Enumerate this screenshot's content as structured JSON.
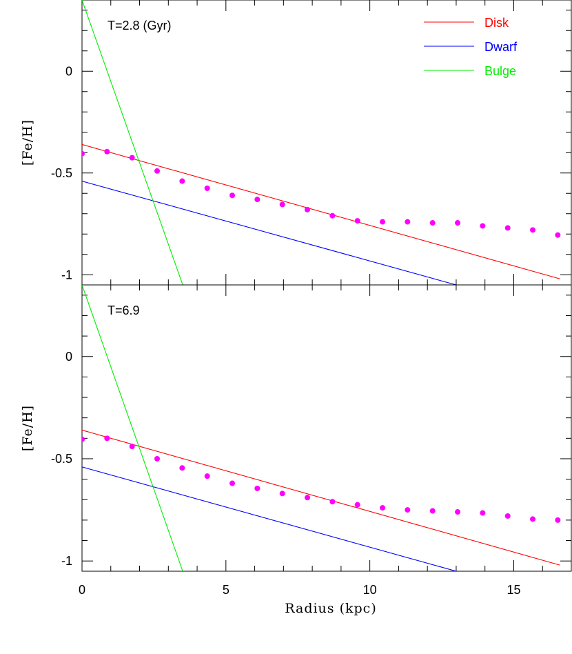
{
  "chart_data": [
    {
      "type": "line",
      "title": "T=2.8 (Gyr)",
      "xlabel": "",
      "ylabel": "[Fe/H]",
      "xlim": [
        0,
        17
      ],
      "ylim": [
        -1.05,
        0.35
      ],
      "xticks": [
        0,
        5,
        10,
        15
      ],
      "yticks": [
        0,
        -0.5,
        -1
      ],
      "ytick_labels": [
        "0",
        "-0.5",
        "-1"
      ],
      "legend": {
        "placement": "top-right"
      },
      "series": [
        {
          "name": "Disk",
          "kind": "line",
          "color": "#ff0000",
          "x": [
            0,
            16.6
          ],
          "y": [
            -0.36,
            -1.02
          ]
        },
        {
          "name": "Dwarf",
          "kind": "line",
          "color": "#0000ff",
          "x": [
            0,
            13.0
          ],
          "y": [
            -0.54,
            -1.05
          ]
        },
        {
          "name": "Bulge",
          "kind": "line",
          "color": "#00ee00",
          "x": [
            0,
            3.5
          ],
          "y": [
            0.35,
            -1.05
          ]
        },
        {
          "kind": "scatter",
          "color": "#ff00ff",
          "x": [
            0,
            0.87,
            1.74,
            2.61,
            3.48,
            4.35,
            5.22,
            6.09,
            6.96,
            7.83,
            8.7,
            9.57,
            10.44,
            11.31,
            12.18,
            13.05,
            13.92,
            14.79,
            15.66,
            16.53
          ],
          "y": [
            -0.405,
            -0.395,
            -0.425,
            -0.49,
            -0.54,
            -0.575,
            -0.61,
            -0.63,
            -0.655,
            -0.68,
            -0.71,
            -0.735,
            -0.74,
            -0.74,
            -0.745,
            -0.745,
            -0.76,
            -0.77,
            -0.78,
            -0.805
          ]
        }
      ]
    },
    {
      "type": "line",
      "title": "T=6.9",
      "xlabel": "Radius (kpc)",
      "ylabel": "[Fe/H]",
      "xlim": [
        0,
        17
      ],
      "ylim": [
        -1.05,
        0.35
      ],
      "xticks": [
        0,
        5,
        10,
        15
      ],
      "xtick_labels": [
        "0",
        "5",
        "10",
        "15"
      ],
      "yticks": [
        0,
        -0.5,
        -1
      ],
      "ytick_labels": [
        "0",
        "-0.5",
        "-1"
      ],
      "series": [
        {
          "name": "Disk",
          "kind": "line",
          "color": "#ff0000",
          "x": [
            0,
            16.6
          ],
          "y": [
            -0.36,
            -1.02
          ]
        },
        {
          "name": "Dwarf",
          "kind": "line",
          "color": "#0000ff",
          "x": [
            0,
            13.0
          ],
          "y": [
            -0.54,
            -1.05
          ]
        },
        {
          "name": "Bulge",
          "kind": "line",
          "color": "#00ee00",
          "x": [
            0,
            3.5
          ],
          "y": [
            0.35,
            -1.05
          ]
        },
        {
          "kind": "scatter",
          "color": "#ff00ff",
          "x": [
            0,
            0.87,
            1.74,
            2.61,
            3.48,
            4.35,
            5.22,
            6.09,
            6.96,
            7.83,
            8.7,
            9.57,
            10.44,
            11.31,
            12.18,
            13.05,
            13.92,
            14.79,
            15.66,
            16.53
          ],
          "y": [
            -0.405,
            -0.4,
            -0.44,
            -0.5,
            -0.545,
            -0.585,
            -0.62,
            -0.645,
            -0.67,
            -0.69,
            -0.71,
            -0.725,
            -0.74,
            -0.75,
            -0.755,
            -0.76,
            -0.765,
            -0.78,
            -0.795,
            -0.8
          ]
        }
      ]
    }
  ]
}
